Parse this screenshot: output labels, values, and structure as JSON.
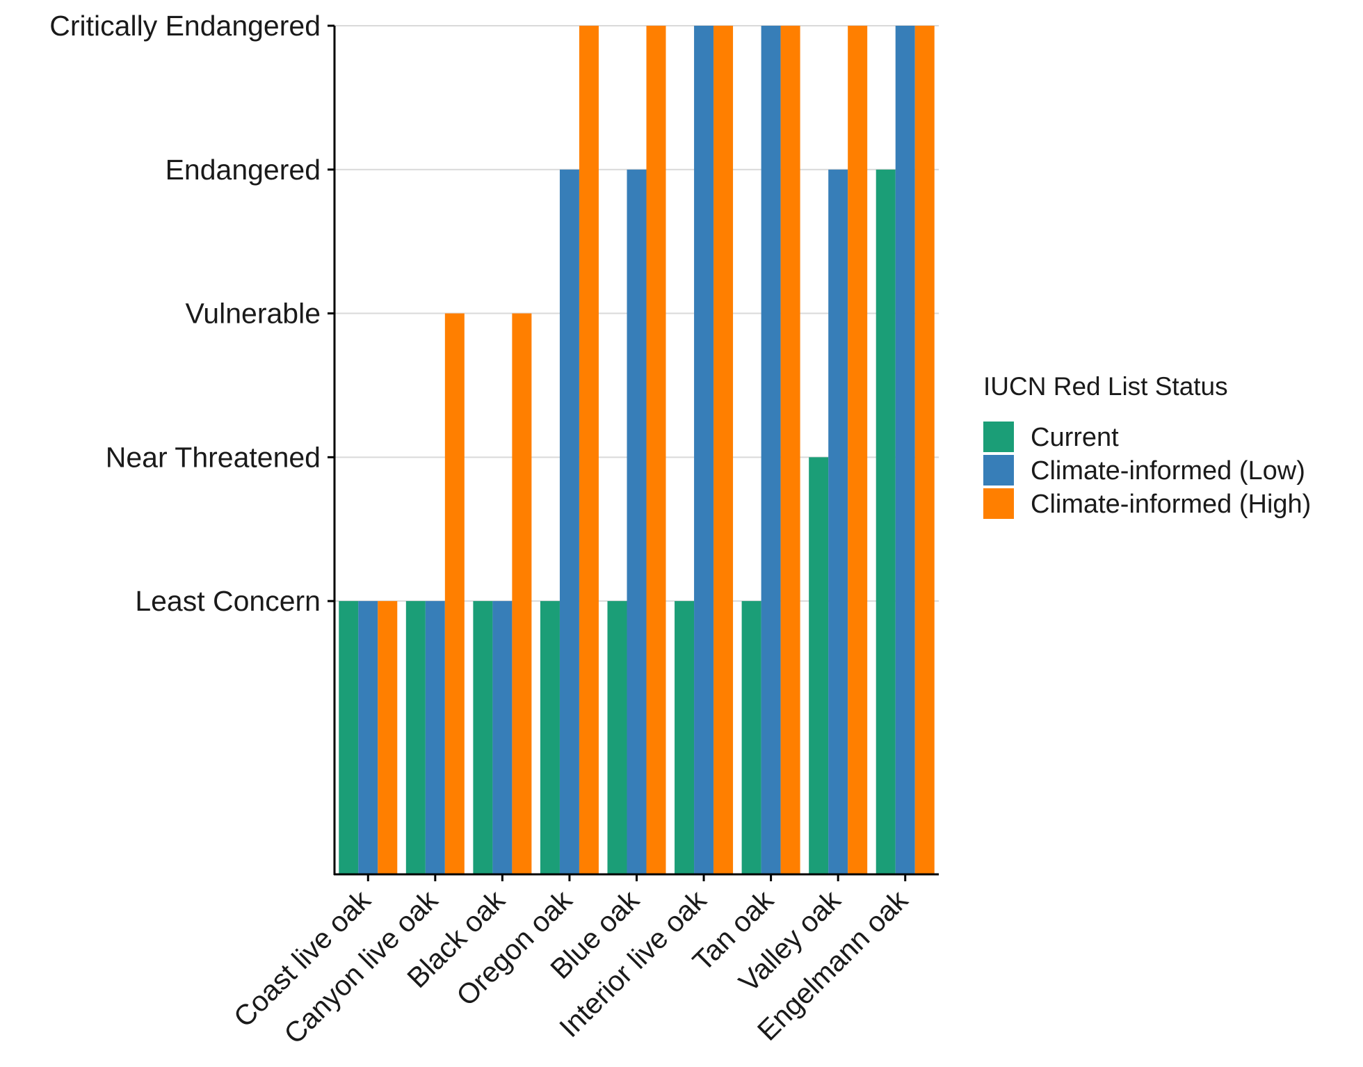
{
  "chart_data": {
    "type": "bar",
    "y_levels": [
      "Least Concern",
      "Near Threatened",
      "Vulnerable",
      "Endangered",
      "Critically Endangered"
    ],
    "y_scale": {
      "type": "ordinal",
      "positions": [
        1,
        2,
        3,
        4,
        5
      ]
    },
    "ylim": [
      -0.9,
      5
    ],
    "categories": [
      "Coast live oak",
      "Canyon live oak",
      "Black oak",
      "Oregon oak",
      "Blue oak",
      "Interior live oak",
      "Tan oak",
      "Valley oak",
      "Engelmann oak"
    ],
    "series": [
      {
        "name": "Current",
        "color": "#1b9e77",
        "values": [
          "Least Concern",
          "Least Concern",
          "Least Concern",
          "Least Concern",
          "Least Concern",
          "Least Concern",
          "Least Concern",
          "Near Threatened",
          "Endangered"
        ]
      },
      {
        "name": "Climate-informed (Low)",
        "color": "#377eb8",
        "values": [
          "Least Concern",
          "Least Concern",
          "Least Concern",
          "Endangered",
          "Endangered",
          "Critically Endangered",
          "Critically Endangered",
          "Endangered",
          "Critically Endangered"
        ]
      },
      {
        "name": "Climate-informed (High)",
        "color": "#ff7f00",
        "values": [
          "Least Concern",
          "Vulnerable",
          "Vulnerable",
          "Critically Endangered",
          "Critically Endangered",
          "Critically Endangered",
          "Critically Endangered",
          "Critically Endangered",
          "Critically Endangered"
        ]
      }
    ],
    "legend": {
      "title": "IUCN Red List Status",
      "placement": "right"
    },
    "grid": {
      "horizontal": true,
      "vertical": false
    },
    "title": "",
    "xlabel": "",
    "ylabel": ""
  }
}
